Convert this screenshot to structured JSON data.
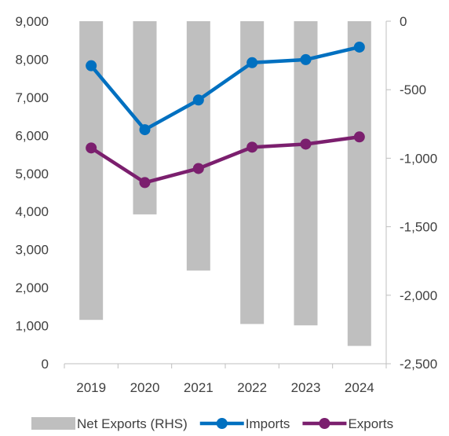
{
  "chart_data": {
    "type": "bar+line",
    "categories": [
      "2019",
      "2020",
      "2021",
      "2022",
      "2023",
      "2024"
    ],
    "left_axis": {
      "min": 0,
      "max": 9000,
      "ticks": [
        "0",
        "1,000",
        "2,000",
        "3,000",
        "4,000",
        "5,000",
        "6,000",
        "7,000",
        "8,000",
        "9,000"
      ],
      "tick_values": [
        0,
        1000,
        2000,
        3000,
        4000,
        5000,
        6000,
        7000,
        8000,
        9000
      ]
    },
    "right_axis": {
      "min": -2500,
      "max": 0,
      "ticks": [
        "-2,500",
        "-2,000",
        "-1,500",
        "-1,000",
        "-500",
        "0"
      ],
      "tick_values": [
        -2500,
        -2000,
        -1500,
        -1000,
        -500,
        0
      ]
    },
    "series": [
      {
        "name": "Net Exports (RHS)",
        "type": "bar",
        "axis": "right",
        "color": "#bfbfbf",
        "values": [
          -2180,
          -1410,
          -1820,
          -2210,
          -2220,
          -2370
        ]
      },
      {
        "name": "Imports",
        "type": "line",
        "axis": "left",
        "color": "#0070c0",
        "values": [
          7830,
          6150,
          6930,
          7910,
          7990,
          8320
        ]
      },
      {
        "name": "Exports",
        "type": "line",
        "axis": "left",
        "color": "#7b1f6e",
        "values": [
          5670,
          4760,
          5130,
          5690,
          5770,
          5960
        ]
      }
    ],
    "grid": false,
    "legend_position": "bottom"
  }
}
